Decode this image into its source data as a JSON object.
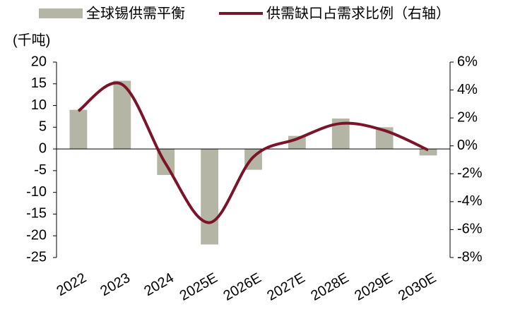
{
  "chart_data": {
    "type": "bar_line",
    "y_axis_label": "(千吨)",
    "categories": [
      "2022",
      "2023",
      "2024",
      "2025E",
      "2026E",
      "2027E",
      "2028E",
      "2029E",
      "2030E"
    ],
    "series": [
      {
        "name": "全球锡供需平衡",
        "type": "bar",
        "color": "#b5b5a5",
        "values": [
          9,
          15.7,
          -6,
          -22,
          -4.8,
          3,
          7,
          5,
          -1.5
        ]
      },
      {
        "name": "供需缺口占需求比例（右轴）",
        "type": "line",
        "axis": "y2",
        "color": "#7a1428",
        "values": [
          2.5,
          4.4,
          -1.3,
          -5.5,
          -0.8,
          0.5,
          1.6,
          1.1,
          -0.3
        ]
      }
    ],
    "ylim": [
      -25,
      20
    ],
    "yticks": [
      -25,
      -20,
      -15,
      -10,
      -5,
      0,
      5,
      10,
      15,
      20
    ],
    "y2lim": [
      -8,
      6
    ],
    "y2ticks": [
      {
        "value": -8,
        "label": "-8%"
      },
      {
        "value": -6,
        "label": "-6%"
      },
      {
        "value": -4,
        "label": "-4%"
      },
      {
        "value": -2,
        "label": "-2%"
      },
      {
        "value": 0,
        "label": "0%"
      },
      {
        "value": 2,
        "label": "2%"
      },
      {
        "value": 4,
        "label": "4%"
      },
      {
        "value": 6,
        "label": "6%"
      }
    ]
  }
}
